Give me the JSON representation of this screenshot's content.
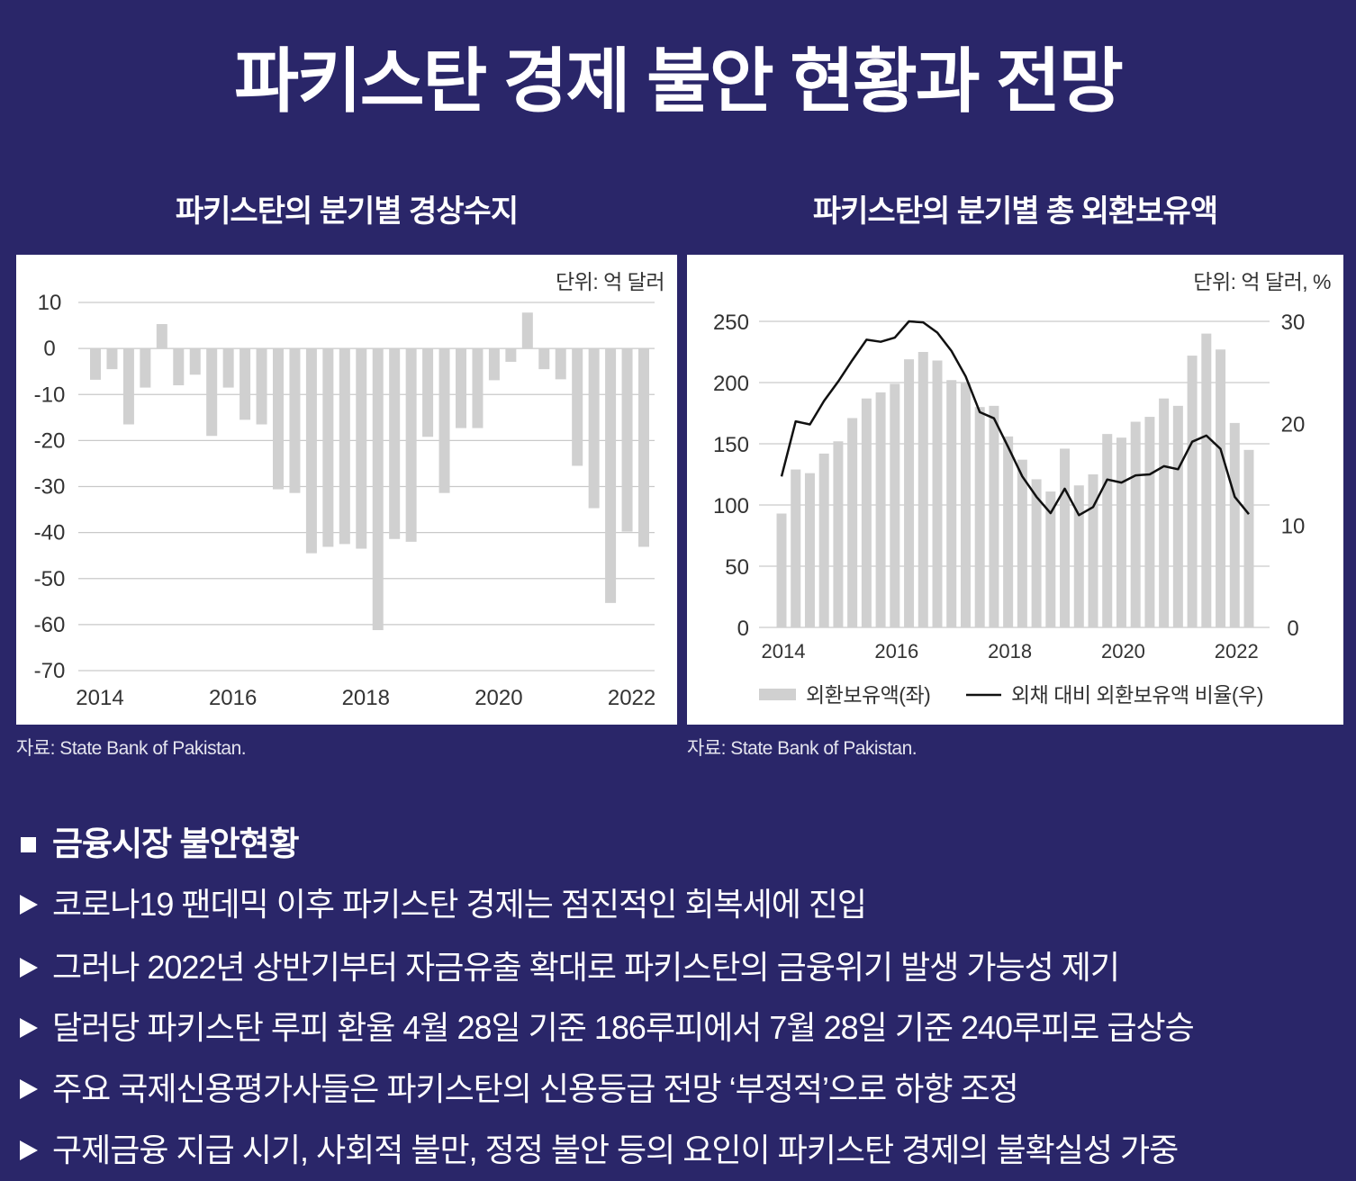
{
  "page": {
    "title": "파키스탄 경제 불안 현황과 전망",
    "background_color": "#2a2669",
    "text_color": "#ffffff"
  },
  "chart_data": [
    {
      "type": "bar",
      "title": "파키스탄의 분기별 경상수지",
      "unit_label": "단위: 억 달러",
      "source": "자료: State Bank of Pakistan.",
      "x_start": 2014,
      "x_step": 0.25,
      "x_ticks": [
        2014,
        2016,
        2018,
        2020,
        2022
      ],
      "y_ticks": [
        10,
        0,
        -10,
        -20,
        -30,
        -40,
        -50,
        -60,
        -70
      ],
      "ylim": [
        -70,
        10
      ],
      "values": [
        -6.8,
        -4.5,
        -16.5,
        -8.5,
        5.3,
        -8.0,
        -5.7,
        -19.0,
        -8.5,
        -15.5,
        -16.5,
        -30.6,
        -31.4,
        -44.5,
        -43.1,
        -42.5,
        -43.5,
        -61.2,
        -41.4,
        -42.0,
        -19.2,
        -31.4,
        -17.3,
        -17.3,
        -6.9,
        -2.9,
        7.8,
        -4.5,
        -6.7,
        -25.5,
        -34.7,
        -55.3,
        -39.8,
        -43.1
      ],
      "bar_color": "#d0d0d0",
      "grid_color": "#c9c9c9"
    },
    {
      "type": "bar",
      "title": "파키스탄의 분기별 총 외환보유액",
      "unit_label": "단위: 억 달러, %",
      "source": "자료: State Bank of Pakistan.",
      "x_start": 2014,
      "x_step": 0.25,
      "x_ticks": [
        2014,
        2016,
        2018,
        2020,
        2022
      ],
      "y_left": {
        "ticks": [
          250,
          200,
          150,
          100,
          50,
          0
        ],
        "lim": [
          0,
          250
        ]
      },
      "y_right": {
        "ticks": [
          30,
          20,
          10,
          0
        ],
        "lim": [
          0,
          30
        ]
      },
      "series": [
        {
          "name": "외환보유액(좌)",
          "type": "bar",
          "axis": "left",
          "color": "#d0d0d0",
          "values": [
            93,
            129,
            126,
            142,
            152,
            171,
            187,
            192,
            199,
            219,
            225,
            218,
            202,
            200,
            180,
            181,
            156,
            137,
            121,
            111,
            146,
            116,
            125,
            158,
            155,
            168,
            172,
            187,
            181,
            222,
            240,
            227,
            167,
            145
          ]
        },
        {
          "name": "외채 대비 외환보유액 비율(우)",
          "type": "line",
          "axis": "right",
          "color": "#111111",
          "values": [
            14.8,
            20.2,
            19.9,
            22.2,
            24.1,
            26.2,
            28.2,
            28.0,
            28.4,
            30.0,
            29.9,
            28.9,
            27.1,
            24.6,
            21.1,
            20.5,
            17.7,
            14.8,
            12.8,
            11.2,
            13.6,
            11.0,
            11.8,
            14.5,
            14.2,
            14.9,
            15.0,
            15.8,
            15.5,
            18.2,
            18.8,
            17.5,
            12.8,
            11.1
          ]
        }
      ],
      "grid_color": "#c9c9c9"
    }
  ],
  "bullets": {
    "header": "금융시장 불안현황",
    "items": [
      "코로나19 팬데믹 이후 파키스탄 경제는 점진적인 회복세에 진입",
      "그러나 2022년 상반기부터 자금유출 확대로 파키스탄의 금융위기 발생 가능성 제기",
      "달러당 파키스탄 루피 환율 4월 28일 기준 186루피에서 7월 28일 기준 240루피로 급상승",
      "주요 국제신용평가사들은 파키스탄의 신용등급 전망 ‘부정적’으로 하향 조정",
      "구제금융 지급 시기, 사회적 불만, 정정 불안 등의 요인이 파키스탄 경제의 불확실성 가중"
    ]
  }
}
